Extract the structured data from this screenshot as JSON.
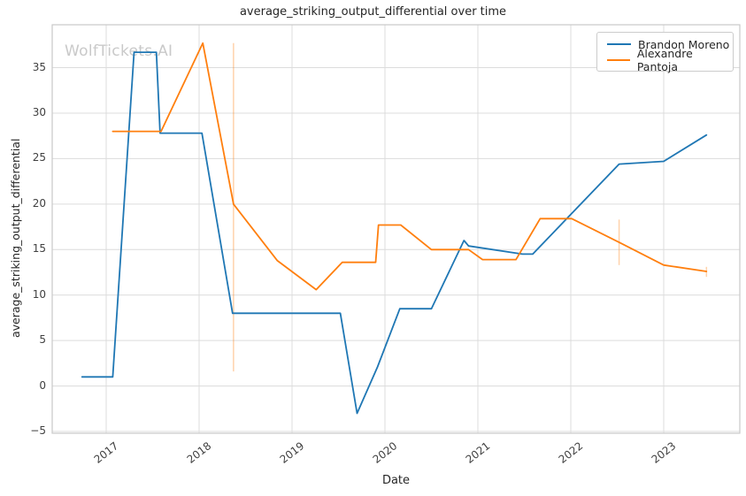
{
  "chart_data": {
    "type": "line",
    "title": "average_striking_output_differential over time",
    "xlabel": "Date",
    "ylabel": "average_striking_output_differential",
    "watermark": "WolfTickets.AI",
    "legend_position": "upper right",
    "grid": true,
    "x_ticks": [
      2017,
      2018,
      2019,
      2020,
      2021,
      2022,
      2023
    ],
    "y_ticks": [
      -5,
      0,
      5,
      10,
      15,
      20,
      25,
      30,
      35
    ],
    "xlim_years": [
      2016.419,
      2023.819
    ],
    "ylim": [
      -5.19,
      39.72
    ],
    "colors": {
      "grid": "#dcdcdc",
      "spine": "#c9c9c9",
      "text": "#262626",
      "tick_text": "#404040",
      "watermark": "#c9c9c9",
      "background": "#ffffff"
    },
    "series": [
      {
        "name": "Brandon Moreno",
        "color": "#1f77b4",
        "points": [
          {
            "date": "2016-10",
            "t": 2016.74,
            "value": 1.0
          },
          {
            "date": "2017-01",
            "t": 2017.07,
            "value": 1.0
          },
          {
            "date": "2017-04",
            "t": 2017.3,
            "value": 36.7
          },
          {
            "date": "2017-07",
            "t": 2017.54,
            "value": 36.7
          },
          {
            "date": "2017-08",
            "t": 2017.58,
            "value": 27.8
          },
          {
            "date": "2018-01",
            "t": 2018.03,
            "value": 27.8
          },
          {
            "date": "2018-05",
            "t": 2018.36,
            "value": 8.0
          },
          {
            "date": "2019-07",
            "t": 2019.52,
            "value": 8.0
          },
          {
            "date": "2019-09",
            "t": 2019.7,
            "value": -3.0
          },
          {
            "date": "2019-12",
            "t": 2019.92,
            "value": 2.1
          },
          {
            "date": "2020-02",
            "t": 2020.16,
            "value": 8.5
          },
          {
            "date": "2020-07",
            "t": 2020.5,
            "value": 8.5
          },
          {
            "date": "2020-11",
            "t": 2020.85,
            "value": 16.0
          },
          {
            "date": "2020-12",
            "t": 2020.9,
            "value": 15.4
          },
          {
            "date": "2021-06",
            "t": 2021.48,
            "value": 14.5
          },
          {
            "date": "2021-08",
            "t": 2021.59,
            "value": 14.5
          },
          {
            "date": "2022-07",
            "t": 2022.52,
            "value": 24.4
          },
          {
            "date": "2023-01",
            "t": 2023.0,
            "value": 24.7
          },
          {
            "date": "2023-06",
            "t": 2023.46,
            "value": 27.6
          }
        ]
      },
      {
        "name": "Alexandre Pantoja",
        "color": "#ff7f0e",
        "points": [
          {
            "date": "2017-01",
            "t": 2017.07,
            "value": 28.0
          },
          {
            "date": "2017-08",
            "t": 2017.59,
            "value": 28.0
          },
          {
            "date": "2018-01",
            "t": 2018.04,
            "value": 37.7
          },
          {
            "date": "2018-05",
            "t": 2018.37,
            "value": 20.0
          },
          {
            "date": "2018-11",
            "t": 2018.84,
            "value": 13.8
          },
          {
            "date": "2019-04",
            "t": 2019.26,
            "value": 10.6
          },
          {
            "date": "2019-07",
            "t": 2019.54,
            "value": 13.6
          },
          {
            "date": "2019-11",
            "t": 2019.9,
            "value": 13.6
          },
          {
            "date": "2019-12",
            "t": 2019.93,
            "value": 17.7
          },
          {
            "date": "2020-03",
            "t": 2020.17,
            "value": 17.7
          },
          {
            "date": "2020-07",
            "t": 2020.5,
            "value": 15.0
          },
          {
            "date": "2020-11",
            "t": 2020.9,
            "value": 15.0
          },
          {
            "date": "2021-01",
            "t": 2021.05,
            "value": 13.9
          },
          {
            "date": "2021-05",
            "t": 2021.41,
            "value": 13.9
          },
          {
            "date": "2021-09",
            "t": 2021.67,
            "value": 18.4
          },
          {
            "date": "2022-01",
            "t": 2022.01,
            "value": 18.4
          },
          {
            "date": "2022-07",
            "t": 2022.52,
            "value": 15.8
          },
          {
            "date": "2023-01",
            "t": 2023.0,
            "value": 13.3
          },
          {
            "date": "2023-06",
            "t": 2023.46,
            "value": 12.6
          }
        ],
        "error_bars": [
          {
            "date": "2018-05",
            "t": 2018.37,
            "low": 1.6,
            "high": 37.7
          },
          {
            "date": "2022-07",
            "t": 2022.52,
            "low": 13.3,
            "high": 18.3
          },
          {
            "date": "2023-06",
            "t": 2023.46,
            "low": 12.0,
            "high": 13.1
          }
        ]
      }
    ]
  }
}
